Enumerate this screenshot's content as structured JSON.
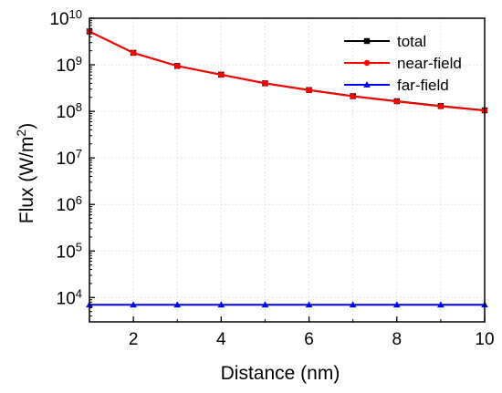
{
  "chart_data": {
    "type": "line",
    "xlabel": "Distance (nm)",
    "ylabel": "Flux (W/m²)",
    "ylabel_base": "Flux (W/m",
    "ylabel_sup": "2",
    "ylabel_close": ")",
    "xlim": [
      1,
      10
    ],
    "ylim": [
      3000,
      10000000000
    ],
    "yscale": "log",
    "grid": true,
    "legend": "top-right",
    "xticks": [
      2,
      4,
      6,
      8,
      10
    ],
    "yticks": [
      {
        "value": 10000,
        "base": "10",
        "exp": "4"
      },
      {
        "value": 100000,
        "base": "10",
        "exp": "5"
      },
      {
        "value": 1000000,
        "base": "10",
        "exp": "6"
      },
      {
        "value": 10000000,
        "base": "10",
        "exp": "7"
      },
      {
        "value": 100000000,
        "base": "10",
        "exp": "8"
      },
      {
        "value": 1000000000,
        "base": "10",
        "exp": "9"
      },
      {
        "value": 10000000000,
        "base": "10",
        "exp": "10"
      }
    ],
    "x": [
      1,
      2,
      3,
      4,
      5,
      6,
      7,
      8,
      9,
      10
    ],
    "series": [
      {
        "name": "total",
        "color": "#000000",
        "marker": "square",
        "values": [
          5200000000,
          1810000000,
          945000000,
          615000000,
          400000000,
          287000000,
          212000000,
          165000000,
          130000000,
          105000000
        ]
      },
      {
        "name": "near-field",
        "color": "#ff0000",
        "marker": "circle",
        "values": [
          5200000000,
          1800000000,
          940000000,
          610000000,
          400000000,
          285000000,
          210000000,
          163000000,
          128000000,
          104000000
        ]
      },
      {
        "name": "far-field",
        "color": "#0000ff",
        "marker": "triangle",
        "values": [
          7000,
          7000,
          7000,
          7000,
          7000,
          7000,
          7000,
          7000,
          7000,
          7000
        ]
      }
    ]
  }
}
